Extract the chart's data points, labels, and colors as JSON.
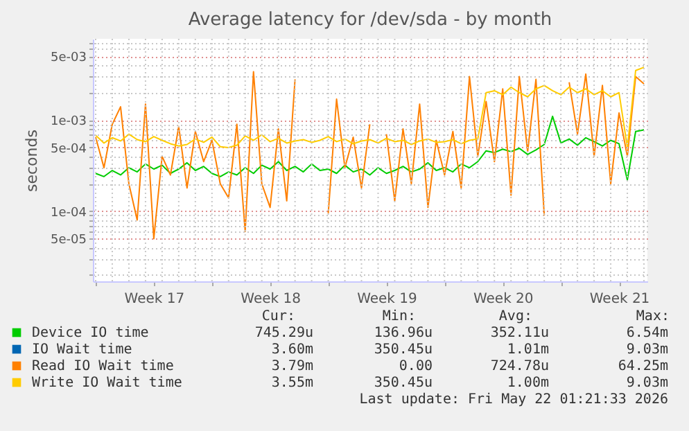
{
  "chart_data": {
    "type": "line",
    "title": "Average latency for /dev/sda - by month",
    "ylabel": "seconds",
    "x": [
      "2026-04-20T00:00",
      "2026-04-20T12:00",
      "2026-04-21T00:00",
      "2026-04-21T12:00",
      "2026-04-22T00:00",
      "2026-04-22T12:00",
      "2026-04-23T00:00",
      "2026-04-23T12:00",
      "2026-04-24T00:00",
      "2026-04-24T12:00",
      "2026-04-25T00:00",
      "2026-04-25T12:00",
      "2026-04-26T00:00",
      "2026-04-26T12:00",
      "2026-04-27T00:00",
      "2026-04-27T12:00",
      "2026-04-28T00:00",
      "2026-04-28T12:00",
      "2026-04-29T00:00",
      "2026-04-29T12:00",
      "2026-04-30T00:00",
      "2026-04-30T12:00",
      "2026-05-01T00:00",
      "2026-05-01T12:00",
      "2026-05-02T00:00",
      "2026-05-02T12:00",
      "2026-05-03T00:00",
      "2026-05-03T12:00",
      "2026-05-04T00:00",
      "2026-05-04T12:00",
      "2026-05-05T00:00",
      "2026-05-05T12:00",
      "2026-05-06T00:00",
      "2026-05-06T12:00",
      "2026-05-07T00:00",
      "2026-05-07T12:00",
      "2026-05-08T00:00",
      "2026-05-08T12:00",
      "2026-05-09T00:00",
      "2026-05-09T12:00",
      "2026-05-10T00:00",
      "2026-05-10T12:00",
      "2026-05-11T00:00",
      "2026-05-11T12:00",
      "2026-05-12T00:00",
      "2026-05-12T12:00",
      "2026-05-13T00:00",
      "2026-05-13T12:00",
      "2026-05-14T00:00",
      "2026-05-14T12:00",
      "2026-05-15T00:00",
      "2026-05-15T12:00",
      "2026-05-16T00:00",
      "2026-05-16T12:00",
      "2026-05-17T00:00",
      "2026-05-17T12:00",
      "2026-05-18T00:00",
      "2026-05-18T12:00",
      "2026-05-19T00:00",
      "2026-05-19T12:00",
      "2026-05-20T00:00",
      "2026-05-20T12:00",
      "2026-05-21T00:00",
      "2026-05-21T12:00",
      "2026-05-22T00:00",
      "2026-05-22T12:00",
      "2026-05-23T00:00"
    ],
    "series": [
      {
        "name": "Device IO time",
        "color": "#00cc00",
        "values": [
          0.00026,
          0.00024,
          0.00028,
          0.00025,
          0.0003,
          0.00027,
          0.00033,
          0.00029,
          0.00032,
          0.00026,
          0.00029,
          0.00034,
          0.00028,
          0.00031,
          0.00026,
          0.00024,
          0.00027,
          0.00025,
          0.0003,
          0.00026,
          0.00032,
          0.00029,
          0.00035,
          0.00028,
          0.00031,
          0.00027,
          0.00033,
          0.00028,
          0.00029,
          0.00026,
          0.00032,
          0.00027,
          0.00029,
          0.00025,
          0.0003,
          0.00026,
          0.00028,
          0.00031,
          0.00027,
          0.00029,
          0.00034,
          0.00028,
          0.0003,
          0.00027,
          0.00033,
          0.0003,
          0.00035,
          0.00046,
          0.00044,
          0.00048,
          0.00045,
          0.00049,
          0.00042,
          0.00047,
          0.00054,
          0.0011,
          0.00056,
          0.00062,
          0.00053,
          0.00064,
          0.00058,
          0.00052,
          0.0006,
          0.00055,
          0.00022,
          0.00075,
          0.00078
        ]
      },
      {
        "name": "IO Wait time",
        "color": "#0066b3",
        "values": [
          null,
          null,
          null,
          null,
          null,
          null,
          null,
          null,
          null,
          null,
          null,
          null,
          null,
          null,
          null,
          null,
          null,
          null,
          null,
          null,
          null,
          null,
          null,
          null,
          null,
          null,
          null,
          null,
          null,
          null,
          null,
          null,
          null,
          null,
          null,
          null,
          null,
          null,
          null,
          null,
          null,
          null,
          null,
          null,
          null,
          null,
          null,
          null,
          null,
          null,
          null,
          null,
          null,
          null,
          null,
          null,
          null,
          null,
          null,
          null,
          null,
          null,
          null,
          null,
          null,
          null,
          null
        ]
      },
      {
        "name": "Read IO Wait time",
        "color": "#ff8000",
        "values": [
          0.00065,
          0.0003,
          0.0009,
          0.0014,
          0.0002,
          8e-05,
          0.0015,
          5e-05,
          0.0004,
          0.00025,
          0.00085,
          0.00018,
          0.00075,
          0.00035,
          0.0006,
          0.0002,
          0.00014,
          0.0009,
          6e-05,
          0.0034,
          0.0002,
          0.00011,
          0.0008,
          0.00013,
          0.0028,
          null,
          null,
          null,
          9.5e-05,
          0.0017,
          0.0003,
          0.00065,
          0.00018,
          0.0009,
          null,
          0.0007,
          0.00013,
          0.0008,
          0.0002,
          0.0015,
          0.00011,
          0.0006,
          0.00025,
          0.00075,
          0.00018,
          0.003,
          0.0004,
          0.0016,
          0.00035,
          0.0022,
          0.00015,
          0.003,
          0.00045,
          0.0028,
          9e-05,
          null,
          null,
          0.0026,
          0.0007,
          0.0032,
          0.0004,
          0.0024,
          0.0002,
          0.0012,
          0.0004,
          0.003,
          0.0025
        ]
      },
      {
        "name": "Write IO Wait time",
        "color": "#ffcc00",
        "values": [
          0.00068,
          0.00056,
          0.00064,
          0.00059,
          0.0007,
          0.00061,
          0.00058,
          0.00066,
          0.0006,
          0.00055,
          0.00052,
          0.00054,
          0.00062,
          0.00057,
          0.00065,
          0.00051,
          0.0005,
          0.00053,
          0.00067,
          0.0006,
          0.00069,
          0.00058,
          0.00063,
          0.00056,
          0.00059,
          0.00061,
          0.00057,
          0.0006,
          0.00066,
          0.00058,
          0.00062,
          0.00055,
          0.00059,
          0.00061,
          0.00056,
          0.00063,
          0.00058,
          0.0006,
          0.00054,
          0.00059,
          0.00062,
          0.00057,
          0.00058,
          0.00061,
          0.00055,
          0.0006,
          0.00062,
          0.002,
          0.0021,
          0.0019,
          0.0023,
          0.002,
          0.0018,
          0.0022,
          0.0024,
          0.0021,
          0.0019,
          0.0023,
          0.002,
          0.0022,
          0.0019,
          0.0021,
          0.0018,
          0.002,
          0.0005,
          0.0035,
          0.0038
        ]
      }
    ],
    "xlim": [
      "2026-04-19T20:00",
      "2026-05-23T05:00"
    ],
    "xticks": [
      {
        "value": "2026-04-20",
        "label": null
      },
      {
        "value": "2026-04-21",
        "label": null
      },
      {
        "value": "2026-04-22",
        "label": null
      },
      {
        "value": "2026-04-23",
        "label": null
      },
      {
        "value": "2026-04-23T12:00",
        "label": "Week 17"
      },
      {
        "value": "2026-04-24",
        "label": null
      },
      {
        "value": "2026-04-25",
        "label": null
      },
      {
        "value": "2026-04-26",
        "label": null
      },
      {
        "value": "2026-04-27",
        "label": null
      },
      {
        "value": "2026-04-28",
        "label": null
      },
      {
        "value": "2026-04-29",
        "label": null
      },
      {
        "value": "2026-04-30",
        "label": null
      },
      {
        "value": "2026-04-30T12:00",
        "label": "Week 18"
      },
      {
        "value": "2026-05-01",
        "label": null
      },
      {
        "value": "2026-05-02",
        "label": null
      },
      {
        "value": "2026-05-03",
        "label": null
      },
      {
        "value": "2026-05-04",
        "label": null
      },
      {
        "value": "2026-05-05",
        "label": null
      },
      {
        "value": "2026-05-06",
        "label": null
      },
      {
        "value": "2026-05-07",
        "label": null
      },
      {
        "value": "2026-05-07T12:00",
        "label": "Week 19"
      },
      {
        "value": "2026-05-08",
        "label": null
      },
      {
        "value": "2026-05-09",
        "label": null
      },
      {
        "value": "2026-05-10",
        "label": null
      },
      {
        "value": "2026-05-11",
        "label": null
      },
      {
        "value": "2026-05-12",
        "label": null
      },
      {
        "value": "2026-05-13",
        "label": null
      },
      {
        "value": "2026-05-14",
        "label": null
      },
      {
        "value": "2026-05-14T12:00",
        "label": "Week 20"
      },
      {
        "value": "2026-05-15",
        "label": null
      },
      {
        "value": "2026-05-16",
        "label": null
      },
      {
        "value": "2026-05-17",
        "label": null
      },
      {
        "value": "2026-05-18",
        "label": null
      },
      {
        "value": "2026-05-19",
        "label": null
      },
      {
        "value": "2026-05-20",
        "label": null
      },
      {
        "value": "2026-05-21",
        "label": null
      },
      {
        "value": "2026-05-21T12:00",
        "label": "Week 21"
      },
      {
        "value": "2026-05-22",
        "label": null
      },
      {
        "value": "2026-05-23",
        "label": null
      }
    ],
    "ylim": [
      1.7e-05,
      0.0078
    ],
    "yticks": [
      {
        "value": 2e-05,
        "label": null
      },
      {
        "value": 3e-05,
        "label": null
      },
      {
        "value": 4e-05,
        "label": null
      },
      {
        "value": 5e-05,
        "label": "5e-05"
      },
      {
        "value": 6e-05,
        "label": null
      },
      {
        "value": 7e-05,
        "label": null
      },
      {
        "value": 8e-05,
        "label": null
      },
      {
        "value": 9e-05,
        "label": null
      },
      {
        "value": 0.0001,
        "label": "1e-04"
      },
      {
        "value": 0.0002,
        "label": null
      },
      {
        "value": 0.0003,
        "label": null
      },
      {
        "value": 0.0004,
        "label": null
      },
      {
        "value": 0.0005,
        "label": "5e-04"
      },
      {
        "value": 0.0006,
        "label": null
      },
      {
        "value": 0.0007,
        "label": null
      },
      {
        "value": 0.0008,
        "label": null
      },
      {
        "value": 0.0009,
        "label": null
      },
      {
        "value": 0.001,
        "label": "1e-03"
      },
      {
        "value": 0.002,
        "label": null
      },
      {
        "value": 0.003,
        "label": null
      },
      {
        "value": 0.004,
        "label": null
      },
      {
        "value": 0.005,
        "label": "5e-03"
      },
      {
        "value": 0.006,
        "label": null
      },
      {
        "value": 0.007,
        "label": null
      }
    ],
    "log": true,
    "grid": true,
    "legend": "bottom",
    "annotations": [
      "Cur:",
      "Min:",
      "Avg:",
      "Max:",
      "745.29u",
      "136.96u",
      "352.11u",
      "6.54m",
      "3.60m",
      "350.45u",
      "1.01m",
      "9.03m",
      "3.79m",
      "0.00",
      "724.78u",
      "64.25m",
      "3.55m",
      "350.45u",
      "1.00m",
      "9.03m",
      "Last update: Fri May 22 01:21:33 2026"
    ]
  }
}
